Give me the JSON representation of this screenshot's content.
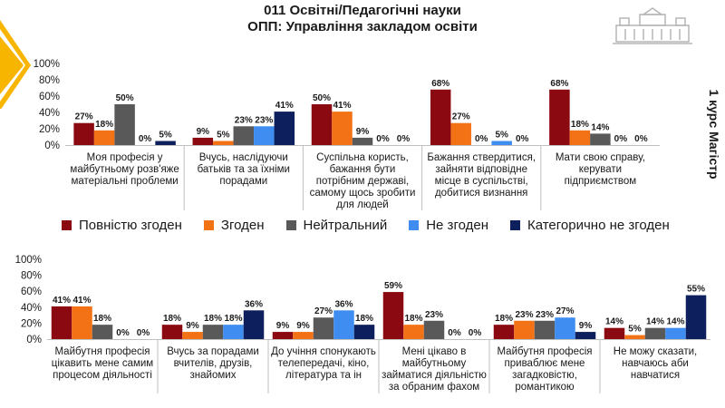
{
  "header": {
    "title": "011 Освітні/Педагогічні науки",
    "subtitle": "ОПП: Управління закладом освіти"
  },
  "side_label": "1 курс Магістр",
  "colors": {
    "s1": "#8b0a12",
    "s2": "#f47216",
    "s3": "#595959",
    "s4": "#3f8df0",
    "s5": "#0d1f5c",
    "stripe": "#f7b500"
  },
  "chart_data": [
    {
      "type": "bar",
      "ylim": [
        0,
        100
      ],
      "yticks": [
        "0%",
        "20%",
        "40%",
        "60%",
        "80%",
        "100%"
      ],
      "categories": [
        [
          "Моя професія у",
          "майбутньому розв'яже",
          "матеріальні проблеми"
        ],
        [
          "Вчусь, наслідуючи",
          "батьків та за їхніми",
          "порадами"
        ],
        [
          "Суспільна користь,",
          "бажання бути",
          "потрібним державі,",
          "самому щось зробити",
          "для людей"
        ],
        [
          "Бажання ствердитися,",
          "зайняти відповідне",
          "місце в суспільстві,",
          "добитися визнання"
        ],
        [
          "Мати свою справу,",
          "керувати",
          "підприємством"
        ]
      ],
      "series": [
        {
          "name": "Повністю згоден",
          "values": [
            27,
            9,
            50,
            68,
            68
          ]
        },
        {
          "name": "Згоден",
          "values": [
            18,
            5,
            41,
            27,
            18
          ]
        },
        {
          "name": "Нейтральний",
          "values": [
            50,
            23,
            9,
            0,
            14
          ]
        },
        {
          "name": "Не згоден",
          "values": [
            0,
            23,
            0,
            5,
            0
          ]
        },
        {
          "name": "Категорично не згоден",
          "values": [
            5,
            41,
            0,
            0,
            0
          ]
        }
      ]
    },
    {
      "type": "bar",
      "ylim": [
        0,
        100
      ],
      "yticks": [
        "0%",
        "20%",
        "40%",
        "60%",
        "80%",
        "100%"
      ],
      "categories": [
        [
          "Майбутня професія",
          "цікавить мене самим",
          "процесом діяльності"
        ],
        [
          "Вчусь за порадами",
          "вчителів, друзів,",
          "знайомих"
        ],
        [
          "До учіння спонукають",
          "телепередачі, кіно,",
          "література та ін"
        ],
        [
          "Мені цікаво в",
          "майбутньому",
          "займатися діяльністю",
          "за обраним фахом"
        ],
        [
          "Майбутня професія",
          "приваблює мене",
          "загадковістю,",
          "романтикою"
        ],
        [
          "Не можу сказати,",
          "навчаюсь аби",
          "навчатися"
        ]
      ],
      "series": [
        {
          "name": "Повністю згоден",
          "values": [
            41,
            18,
            9,
            59,
            18,
            14
          ]
        },
        {
          "name": "Згоден",
          "values": [
            41,
            9,
            9,
            18,
            23,
            5
          ]
        },
        {
          "name": "Нейтральний",
          "values": [
            18,
            18,
            27,
            23,
            23,
            14
          ]
        },
        {
          "name": "Не згоден",
          "values": [
            0,
            18,
            36,
            0,
            27,
            14
          ]
        },
        {
          "name": "Категорично не згоден",
          "values": [
            0,
            36,
            18,
            0,
            9,
            55
          ]
        }
      ]
    }
  ]
}
